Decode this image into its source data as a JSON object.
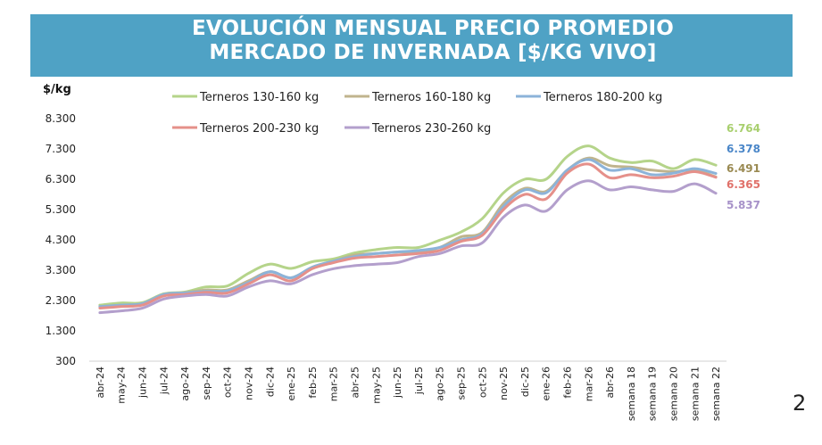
{
  "title_line1": "EVOLUCIÓN MENSUAL PRECIO PROMEDIO",
  "title_line2": "MERCADO DE INVERNADA [$/KG VIVO]",
  "unit_label": "$/kg",
  "page_number": "2",
  "chart_data": {
    "type": "line",
    "ylabel": "$/kg",
    "ylim": [
      300,
      8300
    ],
    "yticks": [
      "8.300",
      "7.300",
      "6.300",
      "5.300",
      "4.300",
      "3.300",
      "2.300",
      "1.300",
      "300"
    ],
    "ytick_values": [
      8300,
      7300,
      6300,
      5300,
      4300,
      3300,
      2300,
      1300,
      300
    ],
    "categories": [
      "abr-24",
      "may-24",
      "jun-24",
      "jul-24",
      "ago-24",
      "sep-24",
      "oct-24",
      "nov-24",
      "dic-24",
      "ene-25",
      "feb-25",
      "mar-25",
      "abr-25",
      "may-25",
      "jun-25",
      "jul-25",
      "ago-25",
      "sep-25",
      "oct-25",
      "nov-25",
      "dic-25",
      "ene-26",
      "feb-26",
      "mar-26",
      "abr-26",
      "semana 18",
      "semana 19",
      "semana 20",
      "semana 21",
      "semana 22"
    ],
    "legend_position": "top",
    "grid": false,
    "series": [
      {
        "name": "Terneros 130-160 kg",
        "color": "#b5d48a",
        "end_label": "6.764",
        "values": [
          2150,
          2220,
          2230,
          2520,
          2580,
          2750,
          2780,
          3200,
          3500,
          3360,
          3580,
          3670,
          3870,
          3980,
          4050,
          4050,
          4290,
          4560,
          5000,
          5850,
          6300,
          6300,
          7050,
          7400,
          7000,
          6850,
          6900,
          6650,
          6950,
          6764
        ]
      },
      {
        "name": "Terneros 160-180 kg",
        "color": "#c0b48e",
        "end_label": "6.378",
        "values": [
          2100,
          2150,
          2200,
          2500,
          2560,
          2650,
          2650,
          2950,
          3250,
          3050,
          3400,
          3600,
          3800,
          3850,
          3900,
          3900,
          4050,
          4400,
          4550,
          5500,
          6000,
          5900,
          6600,
          7000,
          6750,
          6700,
          6600,
          6550,
          6600,
          6378
        ]
      },
      {
        "name": "Terneros 180-200 kg",
        "color": "#8cb3d9",
        "end_label": "6.491",
        "values": [
          2100,
          2150,
          2200,
          2500,
          2550,
          2600,
          2620,
          2900,
          3250,
          3050,
          3400,
          3600,
          3750,
          3850,
          3900,
          3950,
          4050,
          4300,
          4500,
          5400,
          5950,
          5850,
          6600,
          6950,
          6600,
          6650,
          6450,
          6500,
          6650,
          6491
        ]
      },
      {
        "name": "Terneros 200-230 kg",
        "color": "#e5908a",
        "end_label": "6.365",
        "values": [
          2050,
          2100,
          2150,
          2450,
          2500,
          2570,
          2550,
          2850,
          3150,
          2950,
          3350,
          3550,
          3700,
          3750,
          3800,
          3850,
          3950,
          4250,
          4450,
          5300,
          5800,
          5650,
          6500,
          6800,
          6350,
          6450,
          6350,
          6400,
          6550,
          6365
        ]
      },
      {
        "name": "Terneros 230-260 kg",
        "color": "#b39fcc",
        "end_label": "5.837",
        "values": [
          1900,
          1960,
          2050,
          2350,
          2450,
          2500,
          2450,
          2750,
          2950,
          2850,
          3150,
          3350,
          3450,
          3500,
          3550,
          3750,
          3850,
          4100,
          4200,
          5050,
          5450,
          5250,
          5950,
          6250,
          5950,
          6050,
          5950,
          5900,
          6150,
          5837
        ]
      }
    ]
  }
}
